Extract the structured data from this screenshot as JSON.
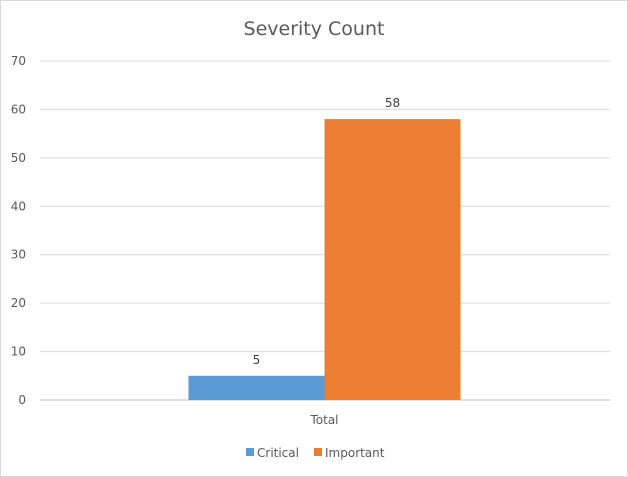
{
  "chart_data": {
    "type": "bar",
    "title": "Severity Count",
    "categories": [
      "Total"
    ],
    "series": [
      {
        "name": "Critical",
        "values": [
          5
        ],
        "color": "#5B9BD5"
      },
      {
        "name": "Important",
        "values": [
          58
        ],
        "color": "#ED7D31"
      }
    ],
    "xlabel": "",
    "ylabel": "",
    "ylim": [
      0,
      70
    ],
    "yticks": [
      "0",
      "10",
      "20",
      "30",
      "40",
      "50",
      "60",
      "70"
    ],
    "grid": true,
    "data_labels": true,
    "legend": "bottom"
  }
}
